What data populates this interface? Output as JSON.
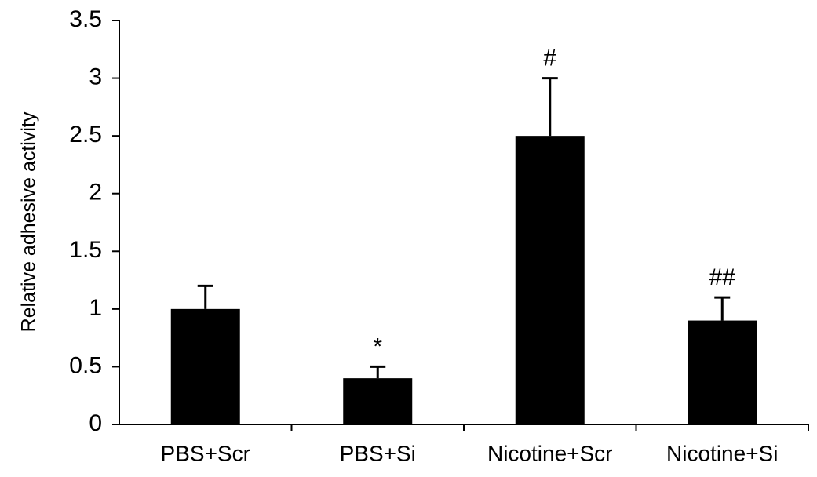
{
  "chart_data": {
    "type": "bar",
    "ylabel": "Relative adhesive activity",
    "categories": [
      "PBS+Scr",
      "PBS+Si",
      "Nicotine+Scr",
      "Nicotine+Si"
    ],
    "values": [
      1.0,
      0.4,
      2.5,
      0.9
    ],
    "errors": [
      0.2,
      0.1,
      0.5,
      0.2
    ],
    "annotations": [
      null,
      "*",
      "#",
      "##"
    ],
    "color": "#000000",
    "ylim": [
      0,
      3.5
    ],
    "yticks": [
      0,
      0.5,
      1,
      1.5,
      2,
      2.5,
      3,
      3.5
    ],
    "grid": false
  }
}
